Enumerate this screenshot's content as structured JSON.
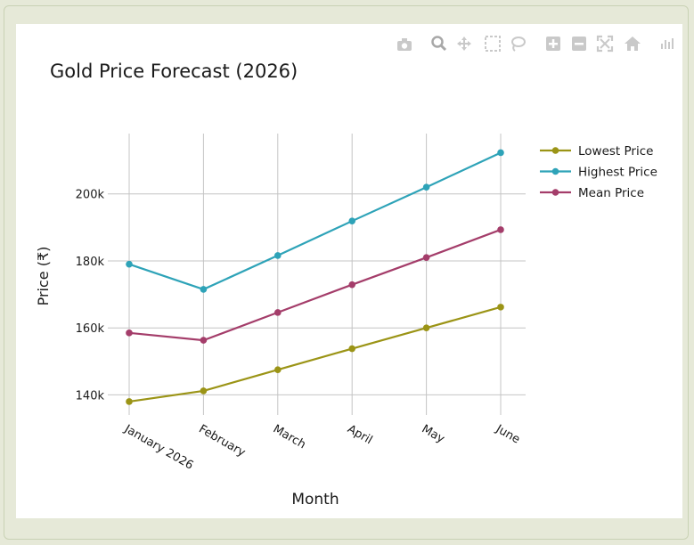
{
  "modebar": {
    "buttons": [
      "camera-icon",
      "zoom-icon",
      "pan-icon",
      "box-select-icon",
      "lasso-icon",
      "zoom-in-icon",
      "zoom-out-icon",
      "autoscale-icon",
      "reset-axes-icon",
      "plotly-logo-icon"
    ]
  },
  "chart_data": {
    "type": "line",
    "title": "Gold Price Forecast (2026)",
    "xlabel": "Month",
    "ylabel": "Price (₹)",
    "categories": [
      "January 2026",
      "February",
      "March",
      "April",
      "May",
      "June"
    ],
    "y_ticks": [
      140000,
      160000,
      180000,
      200000
    ],
    "y_tick_labels": [
      "140k",
      "160k",
      "180k",
      "200k"
    ],
    "ylim": [
      134000,
      218000
    ],
    "grid": true,
    "legend_position": "top-right",
    "series": [
      {
        "name": "Lowest Price",
        "color": "#9b9416",
        "values": [
          138000,
          141200,
          147500,
          153800,
          160000,
          166200
        ]
      },
      {
        "name": "Highest Price",
        "color": "#2ea3b8",
        "values": [
          179000,
          171500,
          181600,
          191900,
          202000,
          212300
        ]
      },
      {
        "name": "Mean Price",
        "color": "#a43d6a",
        "values": [
          158500,
          156300,
          164600,
          172900,
          181000,
          189300
        ]
      }
    ]
  }
}
